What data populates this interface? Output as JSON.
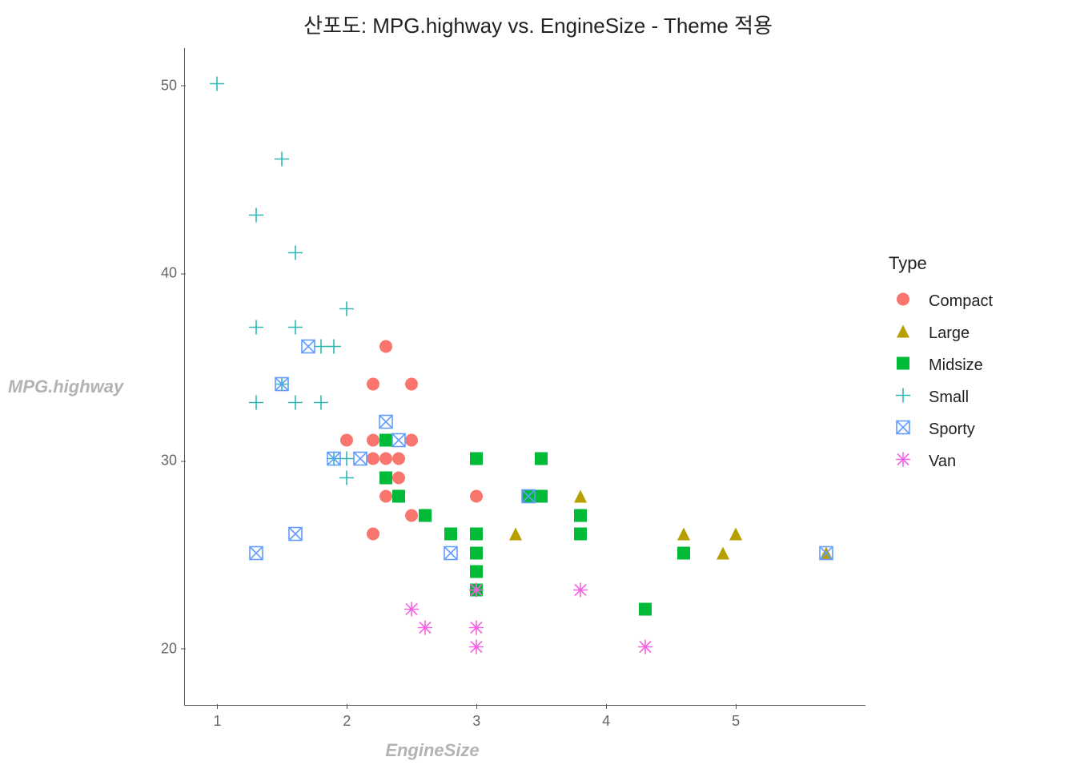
{
  "chart": {
    "type": "scatter",
    "title": "산포도: MPG.highway vs. EngineSize - Theme 적용",
    "xlabel": "EngineSize",
    "ylabel": "MPG.highway",
    "title_fontsize": 26,
    "label_fontsize": 22,
    "label_color": "#b3b3b3",
    "label_fontstyle": "italic-bold",
    "tick_fontsize": 18,
    "tick_color": "#666666",
    "axis_line_color": "#555555",
    "background_color": "#ffffff",
    "grid": false,
    "xlim": [
      0.75,
      6.0
    ],
    "ylim": [
      17,
      52
    ],
    "xticks": [
      1,
      2,
      3,
      4,
      5
    ],
    "yticks": [
      20,
      30,
      40,
      50
    ],
    "marker_size": 18,
    "legend": {
      "title": "Type",
      "position": "right",
      "items": [
        {
          "key": "Compact",
          "label": "Compact",
          "shape": "circle",
          "fill": "#f8766d",
          "stroke": "#f8766d"
        },
        {
          "key": "Large",
          "label": "Large",
          "shape": "triangle-up",
          "fill": "#b79f00",
          "stroke": "#b79f00"
        },
        {
          "key": "Midsize",
          "label": "Midsize",
          "shape": "square",
          "fill": "#00ba38",
          "stroke": "#00ba38"
        },
        {
          "key": "Small",
          "label": "Small",
          "shape": "plus",
          "fill": "none",
          "stroke": "#2fb8b0"
        },
        {
          "key": "Sporty",
          "label": "Sporty",
          "shape": "square-x",
          "fill": "none",
          "stroke": "#619cff"
        },
        {
          "key": "Van",
          "label": "Van",
          "shape": "asterisk",
          "fill": "none",
          "stroke": "#f564e3"
        }
      ]
    },
    "series": {
      "Compact": [
        [
          2.2,
          31
        ],
        [
          2.0,
          31
        ],
        [
          2.3,
          36
        ],
        [
          2.2,
          34
        ],
        [
          2.5,
          34
        ],
        [
          2.2,
          30
        ],
        [
          2.3,
          30
        ],
        [
          2.3,
          31
        ],
        [
          2.5,
          31
        ],
        [
          2.4,
          30
        ],
        [
          2.3,
          29
        ],
        [
          2.4,
          29
        ],
        [
          2.3,
          28
        ],
        [
          2.5,
          27
        ],
        [
          2.2,
          26
        ],
        [
          3.0,
          28
        ]
      ],
      "Large": [
        [
          3.4,
          28
        ],
        [
          3.8,
          28
        ],
        [
          3.3,
          26
        ],
        [
          5.0,
          26
        ],
        [
          4.6,
          26
        ],
        [
          4.9,
          25
        ],
        [
          5.7,
          25
        ]
      ],
      "Midsize": [
        [
          2.3,
          31
        ],
        [
          2.3,
          29
        ],
        [
          2.4,
          28
        ],
        [
          2.6,
          27
        ],
        [
          2.8,
          26
        ],
        [
          3.0,
          30
        ],
        [
          3.5,
          30
        ],
        [
          3.0,
          26
        ],
        [
          3.4,
          28
        ],
        [
          3.8,
          27
        ],
        [
          3.0,
          25
        ],
        [
          3.8,
          26
        ],
        [
          3.5,
          28
        ],
        [
          3.0,
          24
        ],
        [
          3.0,
          23
        ],
        [
          4.6,
          25
        ],
        [
          4.3,
          22
        ]
      ],
      "Small": [
        [
          1.0,
          50
        ],
        [
          1.5,
          46
        ],
        [
          1.3,
          43
        ],
        [
          1.6,
          41
        ],
        [
          2.0,
          38
        ],
        [
          1.3,
          37
        ],
        [
          1.6,
          37
        ],
        [
          1.8,
          36
        ],
        [
          1.9,
          36
        ],
        [
          1.5,
          34
        ],
        [
          1.6,
          33
        ],
        [
          1.8,
          33
        ],
        [
          1.3,
          33
        ],
        [
          2.0,
          30
        ],
        [
          1.9,
          30
        ],
        [
          2.0,
          29
        ]
      ],
      "Sporty": [
        [
          1.7,
          36
        ],
        [
          1.5,
          34
        ],
        [
          2.3,
          32
        ],
        [
          2.4,
          31
        ],
        [
          1.9,
          30
        ],
        [
          2.1,
          30
        ],
        [
          2.8,
          25
        ],
        [
          1.6,
          26
        ],
        [
          1.3,
          25
        ],
        [
          3.4,
          28
        ],
        [
          5.7,
          25
        ]
      ],
      "Van": [
        [
          2.5,
          22
        ],
        [
          2.6,
          21
        ],
        [
          3.0,
          23
        ],
        [
          3.0,
          21
        ],
        [
          3.0,
          20
        ],
        [
          3.8,
          23
        ],
        [
          4.3,
          20
        ]
      ]
    }
  }
}
